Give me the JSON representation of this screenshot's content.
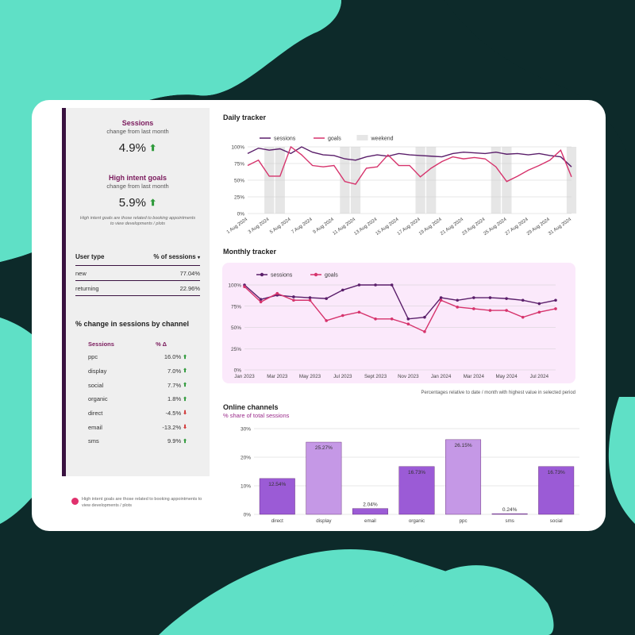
{
  "sidebar": {
    "sessions_title": "Sessions",
    "sessions_sub": "change from last month",
    "sessions_value": "4.9%",
    "goals_title": "High intent goals",
    "goals_sub": "change from last month",
    "goals_value": "5.9%",
    "goals_note": "High intent goals are those related to booking appointments to view developments / plots",
    "user_type": {
      "header_label": "User type",
      "header_value": "% of sessions",
      "rows": [
        {
          "label": "new",
          "value": "77.04%"
        },
        {
          "label": "returning",
          "value": "22.96%"
        }
      ]
    },
    "channel_title": "% change in sessions by channel",
    "channel_header_label": "Sessions",
    "channel_header_value": "% Δ",
    "channels": [
      {
        "label": "ppc",
        "value": "16.0%",
        "dir": "up"
      },
      {
        "label": "display",
        "value": "7.0%",
        "dir": "up"
      },
      {
        "label": "social",
        "value": "7.7%",
        "dir": "up"
      },
      {
        "label": "organic",
        "value": "1.8%",
        "dir": "up"
      },
      {
        "label": "direct",
        "value": "-4.5%",
        "dir": "down"
      },
      {
        "label": "email",
        "value": "-13.2%",
        "dir": "down"
      },
      {
        "label": "sms",
        "value": "9.9%",
        "dir": "up"
      }
    ],
    "footer_note": "High intent goals are those related to booking appointments to view developments / plots"
  },
  "colors": {
    "sessions": "#5a1e6a",
    "goals": "#d6336c",
    "bar": "#9b5bd6",
    "bar_light": "#c598e6",
    "bg": "#5fe0c6",
    "dark": "#0d2a2a"
  },
  "chart_data": [
    {
      "type": "line",
      "title": "Daily tracker",
      "legend": [
        "sessions",
        "goals",
        "weekend"
      ],
      "x": [
        "1 Aug 2024",
        "2 Aug 2024",
        "3 Aug 2024",
        "4 Aug 2024",
        "5 Aug 2024",
        "6 Aug 2024",
        "7 Aug 2024",
        "8 Aug 2024",
        "9 Aug 2024",
        "10 Aug 2024",
        "11 Aug 2024",
        "12 Aug 2024",
        "13 Aug 2024",
        "14 Aug 2024",
        "15 Aug 2024",
        "16 Aug 2024",
        "17 Aug 2024",
        "18 Aug 2024",
        "19 Aug 2024",
        "20 Aug 2024",
        "21 Aug 2024",
        "22 Aug 2024",
        "23 Aug 2024",
        "24 Aug 2024",
        "25 Aug 2024",
        "26 Aug 2024",
        "27 Aug 2024",
        "28 Aug 2024",
        "29 Aug 2024",
        "30 Aug 2024",
        "31 Aug 2024"
      ],
      "tick_labels": [
        "1 Aug 2024",
        "3 Aug 2024",
        "5 Aug 2024",
        "7 Aug 2024",
        "9 Aug 2024",
        "11 Aug 2024",
        "13 Aug 2024",
        "15 Aug 2024",
        "17 Aug 2024",
        "19 Aug 2024",
        "21 Aug 2024",
        "23 Aug 2024",
        "25 Aug 2024",
        "27 Aug 2024",
        "29 Aug 2024",
        "31 Aug 2024"
      ],
      "weekend_days": [
        "3 Aug 2024",
        "4 Aug 2024",
        "10 Aug 2024",
        "11 Aug 2024",
        "17 Aug 2024",
        "18 Aug 2024",
        "24 Aug 2024",
        "25 Aug 2024",
        "31 Aug 2024"
      ],
      "series": [
        {
          "name": "sessions",
          "values": [
            90,
            98,
            95,
            97,
            90,
            100,
            92,
            88,
            87,
            82,
            80,
            85,
            88,
            86,
            90,
            88,
            87,
            86,
            85,
            90,
            92,
            91,
            90,
            92,
            89,
            90,
            88,
            90,
            87,
            85,
            70
          ]
        },
        {
          "name": "goals",
          "values": [
            72,
            80,
            56,
            56,
            100,
            88,
            72,
            70,
            72,
            48,
            44,
            68,
            70,
            88,
            72,
            72,
            55,
            68,
            78,
            85,
            82,
            84,
            82,
            70,
            48,
            56,
            65,
            72,
            80,
            95,
            55
          ]
        }
      ],
      "ylim": [
        0,
        100
      ],
      "yticks": [
        "0%",
        "25%",
        "50%",
        "75%",
        "100%"
      ]
    },
    {
      "type": "line",
      "title": "Monthly tracker",
      "legend": [
        "sessions",
        "goals"
      ],
      "x": [
        "Jan 2023",
        "Feb 2023",
        "Mar 2023",
        "Apr 2023",
        "May 2023",
        "Jun 2023",
        "Jul 2023",
        "Aug 2023",
        "Sept 2023",
        "Oct 2023",
        "Nov 2023",
        "Dec 2023",
        "Jan 2024",
        "Feb 2024",
        "Mar 2024",
        "Apr 2024",
        "May 2024",
        "Jun 2024",
        "Jul 2024",
        "Aug 2024"
      ],
      "tick_labels": [
        "Jan 2023",
        "Mar 2023",
        "May 2023",
        "Jul 2023",
        "Sept 2023",
        "Nov 2023",
        "Jan 2024",
        "Mar 2024",
        "May 2024",
        "Jul 2024"
      ],
      "series": [
        {
          "name": "sessions",
          "values": [
            100,
            83,
            88,
            86,
            85,
            84,
            94,
            100,
            100,
            100,
            60,
            62,
            85,
            82,
            85,
            85,
            84,
            82,
            78,
            82
          ]
        },
        {
          "name": "goals",
          "values": [
            98,
            80,
            90,
            82,
            82,
            58,
            64,
            68,
            60,
            60,
            54,
            45,
            82,
            74,
            72,
            70,
            70,
            62,
            68,
            72
          ]
        }
      ],
      "ylim": [
        0,
        100
      ],
      "yticks": [
        "0%",
        "25%",
        "50%",
        "75%",
        "100%"
      ],
      "footnote": "Percentages relative to date / month with highest value in selected period"
    },
    {
      "type": "bar",
      "title": "Online channels",
      "subtitle": "% share of total sessions",
      "categories": [
        "direct",
        "display",
        "email",
        "organic",
        "ppc",
        "sms",
        "social"
      ],
      "values": [
        12.54,
        25.27,
        2.04,
        16.73,
        26.15,
        0.24,
        16.73
      ],
      "labels": [
        "12.54%",
        "25.27%",
        "2.04%",
        "16.73%",
        "26.15%",
        "0.24%",
        "16.73%"
      ],
      "ylim": [
        0,
        30
      ],
      "yticks": [
        "0%",
        "10%",
        "20%",
        "30%"
      ]
    }
  ]
}
